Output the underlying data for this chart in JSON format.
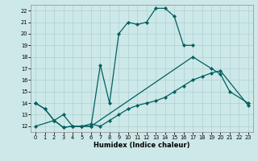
{
  "xlabel": "Humidex (Indice chaleur)",
  "xlim": [
    -0.5,
    23.5
  ],
  "ylim": [
    11.5,
    22.5
  ],
  "xticks": [
    0,
    1,
    2,
    3,
    4,
    5,
    6,
    7,
    8,
    9,
    10,
    11,
    12,
    13,
    14,
    15,
    16,
    17,
    18,
    19,
    20,
    21,
    22,
    23
  ],
  "yticks": [
    12,
    13,
    14,
    15,
    16,
    17,
    18,
    19,
    20,
    21,
    22
  ],
  "bg_color": "#cde8e8",
  "grid_color": "#b0d0d0",
  "line_color": "#006060",
  "line_top_x": [
    0,
    1,
    2,
    3,
    4,
    5,
    6,
    7,
    8,
    9,
    10,
    11,
    12,
    13,
    14,
    15,
    16,
    17
  ],
  "line_top_y": [
    14.0,
    13.5,
    12.5,
    11.9,
    12.0,
    12.0,
    12.0,
    17.3,
    14.0,
    20.0,
    21.0,
    20.8,
    21.0,
    22.2,
    22.2,
    21.5,
    19.0,
    19.0
  ],
  "line_mid_x": [
    0,
    1,
    2,
    3,
    4,
    5,
    6,
    17,
    19,
    20,
    21,
    23
  ],
  "line_mid_y": [
    14.0,
    13.5,
    12.5,
    11.9,
    12.0,
    12.0,
    12.0,
    18.0,
    17.0,
    16.5,
    15.0,
    14.0
  ],
  "line_bot_x": [
    0,
    2,
    3,
    4,
    5,
    6,
    7,
    8,
    9,
    10,
    11,
    12,
    13,
    14,
    15,
    16,
    17,
    18,
    19,
    20,
    23
  ],
  "line_bot_y": [
    12.0,
    12.5,
    13.0,
    12.0,
    12.0,
    12.2,
    12.0,
    12.5,
    13.0,
    13.5,
    13.8,
    14.0,
    14.2,
    14.5,
    15.0,
    15.5,
    16.0,
    16.3,
    16.6,
    16.8,
    13.8
  ]
}
